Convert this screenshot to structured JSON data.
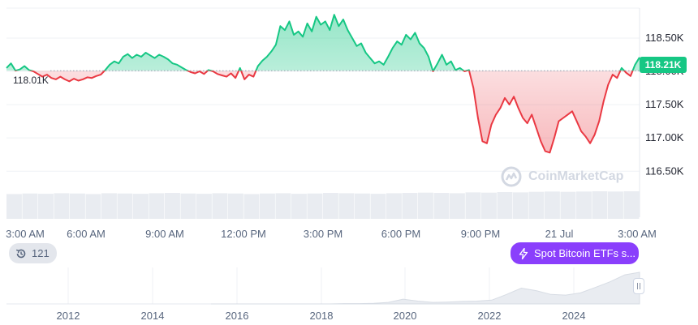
{
  "chart_data": {
    "type": "line",
    "title": "",
    "xlabel": "",
    "ylabel": "",
    "ylim": [
      116.15,
      118.95
    ],
    "y_unit": "K",
    "reference_price": 118.01,
    "reference_label": "118.01K",
    "current_price_label": "118.21K",
    "x_ticks": [
      "3:00 AM",
      "6:00 AM",
      "9:00 AM",
      "12:00 PM",
      "3:00 PM",
      "6:00 PM",
      "9:00 PM",
      "21 Jul",
      "3:00 AM"
    ],
    "y_ticks": [
      "118.50K",
      "118.00K",
      "117.50K",
      "117.00K",
      "116.50K"
    ],
    "y_tick_values": [
      118.5,
      118.0,
      117.5,
      117.0,
      116.5
    ],
    "colors": {
      "above": "#16c784",
      "below": "#ea3943"
    },
    "series": [
      {
        "values": [
          118.05,
          118.12,
          118.01,
          118.03,
          118.08,
          118.02,
          118.0,
          117.96,
          117.92,
          117.95,
          117.9,
          117.88,
          117.92,
          117.88,
          117.85,
          117.89,
          117.86,
          117.88,
          117.91,
          117.9,
          117.93,
          117.95,
          118.02,
          118.1,
          118.15,
          118.12,
          118.22,
          118.26,
          118.2,
          118.25,
          118.22,
          118.28,
          118.24,
          118.2,
          118.25,
          118.22,
          118.18,
          118.12,
          118.1,
          118.06,
          118.02,
          117.99,
          117.97,
          118.0,
          117.96,
          118.02,
          118.0,
          117.96,
          117.94,
          117.92,
          117.97,
          117.9,
          118.05,
          117.88,
          117.95,
          117.92,
          118.08,
          118.16,
          118.22,
          118.3,
          118.4,
          118.68,
          118.62,
          118.75,
          118.55,
          118.6,
          118.52,
          118.72,
          118.6,
          118.82,
          118.7,
          118.75,
          118.62,
          118.85,
          118.68,
          118.78,
          118.62,
          118.5,
          118.38,
          118.42,
          118.28,
          118.2,
          118.12,
          118.15,
          118.1,
          118.22,
          118.35,
          118.45,
          118.4,
          118.55,
          118.48,
          118.58,
          118.42,
          118.35,
          118.22,
          118.0,
          118.12,
          118.25,
          118.1,
          118.15,
          118.02,
          118.05,
          118.0,
          118.02,
          117.75,
          117.3,
          116.95,
          116.92,
          117.2,
          117.35,
          117.45,
          117.6,
          117.5,
          117.62,
          117.45,
          117.3,
          117.22,
          117.35,
          117.15,
          116.95,
          116.8,
          116.78,
          117.0,
          117.25,
          117.3,
          117.35,
          117.4,
          117.25,
          117.1,
          117.02,
          116.92,
          117.05,
          117.25,
          117.55,
          117.8,
          117.95,
          117.9,
          118.05,
          117.98,
          117.93,
          118.1,
          118.21
        ]
      }
    ],
    "volume_values": [
      0.9,
      0.92,
      0.91,
      0.93,
      0.92,
      0.9,
      0.93,
      0.92,
      0.91,
      0.93,
      0.94,
      0.92,
      0.91,
      0.93,
      0.92,
      0.9,
      0.92,
      0.93,
      0.91,
      0.92,
      0.94,
      0.93,
      0.92,
      0.91,
      0.93,
      0.94,
      0.95,
      0.94,
      0.93,
      0.96,
      0.95,
      0.97,
      0.96,
      0.98,
      0.99,
      0.98,
      0.99,
      1.0,
      0.99,
      1.0
    ],
    "navigator": {
      "x_ticks": [
        "2012",
        "2014",
        "2016",
        "2018",
        "2020",
        "2022",
        "2024"
      ],
      "series": [
        0.0,
        0.0,
        0.0,
        0.0,
        0.0,
        0.0,
        0.0,
        0.0,
        0.0,
        0.01,
        0.01,
        0.02,
        0.05,
        0.15,
        0.09,
        0.05,
        0.06,
        0.08,
        0.09,
        0.12,
        0.3,
        0.5,
        0.42,
        0.3,
        0.28,
        0.35,
        0.52,
        0.7,
        0.92,
        1.0
      ]
    }
  },
  "events": {
    "count_label": "121"
  },
  "etf_event": {
    "label": "Spot Bitcoin ETFs s..."
  },
  "watermark": {
    "text": "CoinMarketCap"
  }
}
